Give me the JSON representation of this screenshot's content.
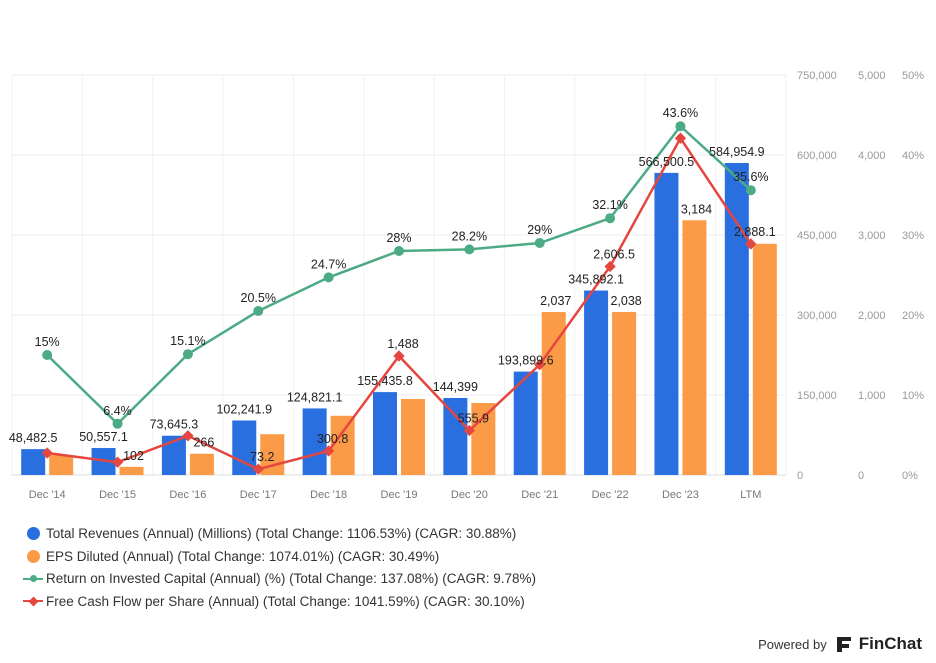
{
  "chart_data": {
    "type": "bar",
    "categories": [
      "Dec '14",
      "Dec '15",
      "Dec '16",
      "Dec '17",
      "Dec '18",
      "Dec '19",
      "Dec '20",
      "Dec '21",
      "Dec '22",
      "Dec '23",
      "LTM"
    ],
    "axes": {
      "revenue": {
        "range": [
          0,
          750000
        ],
        "ticks": [
          "0",
          "150,000",
          "300,000",
          "450,000",
          "600,000",
          "750,000"
        ]
      },
      "eps": {
        "range": [
          0,
          5000
        ],
        "ticks": [
          "0",
          "1,000",
          "2,000",
          "3,000",
          "4,000",
          "5,000"
        ]
      },
      "percent": {
        "range": [
          0,
          50
        ],
        "ticks": [
          "0%",
          "10%",
          "20%",
          "30%",
          "40%",
          "50%"
        ]
      }
    },
    "grid": true,
    "legend_placement": "bottom-left",
    "series": [
      {
        "name": "Total Revenues (Annual) (Millions) (Total Change: 1106.53%) (CAGR: 30.88%)",
        "type": "bar",
        "axis": "revenue",
        "color": "#2a6fe0",
        "values": [
          48482.5,
          50557.1,
          73645.3,
          102241.9,
          124821.1,
          155435.8,
          144399,
          193899.6,
          345892.1,
          566500.5,
          584954.9
        ],
        "labels": [
          "48,482.5",
          "50,557.1",
          "73,645.3",
          "102,241.9",
          "124,821.1",
          "155,435.8",
          "144,399",
          "193,899.6",
          "345,892.1",
          "566,500.5",
          "584,954.9"
        ]
      },
      {
        "name": "EPS Diluted (Annual) (Total Change: 1074.01%) (CAGR: 30.49%)",
        "type": "bar",
        "axis": "eps",
        "color": "#fb9a47",
        "values": [
          250,
          102,
          266,
          510,
          740,
          950,
          900,
          2037,
          2038,
          3184,
          2890
        ],
        "labels": [
          "",
          "102",
          "266",
          "",
          "",
          "",
          "",
          "2,037",
          "2,038",
          "3,184",
          ""
        ]
      },
      {
        "name": "Return on Invested Capital (Annual) (%) (Total Change: 137.08%) (CAGR: 9.78%)",
        "type": "line",
        "axis": "percent",
        "color": "#4caa85",
        "values": [
          15,
          6.4,
          15.1,
          20.5,
          24.7,
          28,
          28.2,
          29,
          32.1,
          43.6,
          35.6
        ],
        "labels": [
          "15%",
          "6.4%",
          "15.1%",
          "20.5%",
          "24.7%",
          "28%",
          "28.2%",
          "29%",
          "32.1%",
          "43.6%",
          "35.6%"
        ]
      },
      {
        "name": "Free Cash Flow per Share (Annual) (Total Change: 1041.59%) (CAGR: 30.10%)",
        "type": "line",
        "axis": "eps",
        "color": "#e5463f",
        "values": [
          275,
          160,
          490,
          73.2,
          300.8,
          1488,
          555.9,
          1380,
          2606.5,
          4210,
          2888.1
        ],
        "labels": [
          "",
          "",
          "",
          "73.2",
          "300.8",
          "1,488",
          "555.9",
          "",
          "2,606.5",
          "",
          "2,888.1"
        ]
      }
    ]
  },
  "footer": {
    "powered_by": "Powered by",
    "brand": "FinChat"
  }
}
